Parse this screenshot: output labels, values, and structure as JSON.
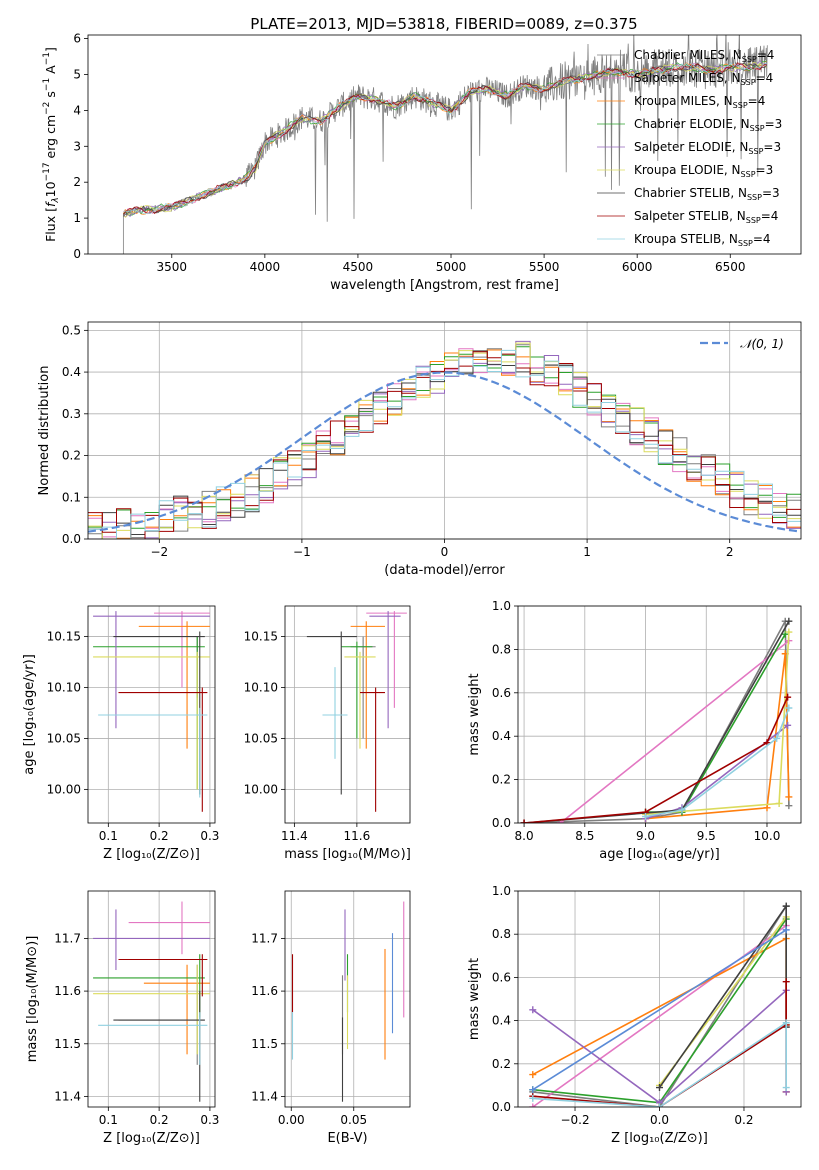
{
  "figure_title": "PLATE=2013, MJD=53818, FIBERID=0089, z=0.375",
  "colors": {
    "Chabrier MILES": "#7f7f7f",
    "Salpeter MILES": "#e377c2",
    "Kroupa MILES": "#ff7f0e",
    "Chabrier ELODIE": "#2ca02c",
    "Salpeter ELODIE": "#9467bd",
    "Kroupa ELODIE": "#dbdb5d",
    "Chabrier STELIB": "#404040",
    "Salpeter STELIB": "#a00000",
    "Kroupa STELIB": "#90d0e0",
    "normal": "#5b8bd6"
  },
  "chart_data": [
    {
      "id": "spectrum",
      "type": "line",
      "title": "PLATE=2013, MJD=53818, FIBERID=0089, z=0.375",
      "xlabel": "wavelength [Angstrom, rest frame]",
      "ylabel": "Flux [f_λ 10^-17 erg cm^-2 s^-1 A^-1]",
      "xlim": [
        3050,
        6880
      ],
      "ylim": [
        0,
        6.1
      ],
      "xticks": [
        3500,
        4000,
        4500,
        5000,
        5500,
        6000,
        6500
      ],
      "yticks": [
        0,
        1,
        2,
        3,
        4,
        5,
        6
      ],
      "grid": false,
      "legend_position": "top-right",
      "legend": [
        {
          "name": "Chabrier MILES",
          "nssp": "4"
        },
        {
          "name": "Salpeter MILES",
          "nssp": "4"
        },
        {
          "name": "Kroupa MILES",
          "nssp": "4"
        },
        {
          "name": "Chabrier ELODIE",
          "nssp": "3"
        },
        {
          "name": "Salpeter ELODIE",
          "nssp": "3"
        },
        {
          "name": "Kroupa ELODIE",
          "nssp": "3"
        },
        {
          "name": "Chabrier STELIB",
          "nssp": "3"
        },
        {
          "name": "Salpeter STELIB",
          "nssp": "4"
        },
        {
          "name": "Kroupa STELIB",
          "nssp": "4"
        }
      ],
      "continuum": {
        "x": [
          3240,
          3300,
          3400,
          3500,
          3600,
          3700,
          3800,
          3900,
          3950,
          4000,
          4100,
          4200,
          4300,
          4400,
          4500,
          4600,
          4700,
          4800,
          4900,
          5000,
          5100,
          5200,
          5300,
          5400,
          5500,
          5600,
          5700,
          5800,
          5900,
          6000,
          6100,
          6200,
          6300,
          6400,
          6500,
          6600,
          6700
        ],
        "y": [
          1.1,
          1.2,
          1.25,
          1.3,
          1.5,
          1.7,
          1.9,
          2.1,
          2.4,
          3.1,
          3.4,
          3.8,
          3.7,
          4.1,
          4.4,
          4.3,
          4.1,
          4.4,
          4.2,
          4.0,
          4.5,
          4.6,
          4.4,
          4.7,
          4.6,
          4.8,
          4.9,
          5.0,
          5.1,
          5.0,
          5.1,
          5.2,
          5.2,
          5.1,
          5.2,
          5.2,
          5.3
        ]
      }
    },
    {
      "id": "residuals",
      "type": "histogram",
      "xlabel": "(data-model)/error",
      "ylabel": "Normed distribution",
      "xlim": [
        -2.5,
        2.5
      ],
      "ylim": [
        0,
        0.52
      ],
      "xticks": [
        -2,
        -1,
        0,
        1,
        2
      ],
      "yticks": [
        0.0,
        0.1,
        0.2,
        0.3,
        0.4,
        0.5
      ],
      "grid": true,
      "legend_position": "top-right",
      "legend": [
        {
          "name": "𝒩(0, 1)"
        }
      ],
      "bin_width": 0.1,
      "base_heights": [
        0.02,
        0.02,
        0.03,
        0.03,
        0.04,
        0.05,
        0.06,
        0.06,
        0.07,
        0.08,
        0.09,
        0.11,
        0.13,
        0.15,
        0.17,
        0.19,
        0.22,
        0.24,
        0.27,
        0.29,
        0.31,
        0.33,
        0.35,
        0.37,
        0.39,
        0.41,
        0.43,
        0.44,
        0.44,
        0.43,
        0.43,
        0.41,
        0.4,
        0.38,
        0.36,
        0.34,
        0.31,
        0.29,
        0.27,
        0.25,
        0.22,
        0.2,
        0.18,
        0.16,
        0.14,
        0.12,
        0.1,
        0.09,
        0.08,
        0.07
      ]
    },
    {
      "id": "age_vs_Z",
      "type": "scatter",
      "xlabel": "Z [log10(Z/Z⊙)]",
      "ylabel": "age [log10(age/yr)]",
      "xlim": [
        0.06,
        0.31
      ],
      "ylim": [
        9.967,
        10.18
      ],
      "xticks": [
        0.1,
        0.2,
        0.3
      ],
      "yticks": [
        10.0,
        10.05,
        10.1,
        10.15
      ],
      "grid": true,
      "points": [
        {
          "series": "Chabrier MILES",
          "x": 0.275,
          "xerr": [
            0.0,
            0.005
          ],
          "y": 10.14,
          "yerr": [
            10.09,
            10.15
          ]
        },
        {
          "series": "Salpeter MILES",
          "x": 0.245,
          "xerr": [
            0.19,
            0.3
          ],
          "y": 10.173,
          "yerr": [
            10.1,
            10.175
          ]
        },
        {
          "series": "Kroupa MILES",
          "x": 0.255,
          "xerr": [
            0.16,
            0.3
          ],
          "y": 10.16,
          "yerr": [
            10.04,
            10.165
          ]
        },
        {
          "series": "Chabrier ELODIE",
          "x": 0.275,
          "xerr": [
            0.07,
            0.29
          ],
          "y": 10.14,
          "yerr": [
            10.0,
            10.15
          ]
        },
        {
          "series": "Salpeter ELODIE",
          "x": 0.115,
          "xerr": [
            0.07,
            0.3
          ],
          "y": 10.17,
          "yerr": [
            10.06,
            10.175
          ]
        },
        {
          "series": "Kroupa ELODIE",
          "x": 0.275,
          "xerr": [
            0.07,
            0.3
          ],
          "y": 10.13,
          "yerr": [
            10.0,
            10.135
          ]
        },
        {
          "series": "Chabrier STELIB",
          "x": 0.28,
          "xerr": [
            0.11,
            0.29
          ],
          "y": 10.15,
          "yerr": [
            9.995,
            10.155
          ]
        },
        {
          "series": "Salpeter STELIB",
          "x": 0.285,
          "xerr": [
            0.12,
            0.295
          ],
          "y": 10.095,
          "yerr": [
            9.978,
            10.1
          ]
        },
        {
          "series": "Kroupa STELIB",
          "x": 0.28,
          "xerr": [
            0.08,
            0.295
          ],
          "y": 10.073,
          "yerr": [
            9.992,
            10.08
          ]
        }
      ]
    },
    {
      "id": "age_vs_mass",
      "type": "scatter",
      "xlabel": "mass [log10(M/M⊙)]",
      "ylabel": "",
      "xlim": [
        11.37,
        11.77
      ],
      "ylim": [
        9.967,
        10.18
      ],
      "xticks": [
        11.4,
        11.6
      ],
      "yticks": [
        10.0,
        10.05,
        10.1,
        10.15
      ],
      "grid": true,
      "points": [
        {
          "series": "Chabrier MILES",
          "x": 11.62,
          "xerr": [
            11.58,
            11.66
          ],
          "y": 10.14,
          "yerr": [
            10.05,
            10.15
          ]
        },
        {
          "series": "Salpeter MILES",
          "x": 11.72,
          "xerr": [
            11.63,
            11.76
          ],
          "y": 10.173,
          "yerr": [
            10.08,
            10.175
          ]
        },
        {
          "series": "Kroupa MILES",
          "x": 11.63,
          "xerr": [
            11.58,
            11.69
          ],
          "y": 10.16,
          "yerr": [
            10.04,
            10.165
          ]
        },
        {
          "series": "Chabrier ELODIE",
          "x": 11.6,
          "xerr": [
            11.55,
            11.65
          ],
          "y": 10.14,
          "yerr": [
            10.05,
            10.145
          ]
        },
        {
          "series": "Salpeter ELODIE",
          "x": 11.7,
          "xerr": [
            11.64,
            11.74
          ],
          "y": 10.17,
          "yerr": [
            10.06,
            10.175
          ]
        },
        {
          "series": "Kroupa ELODIE",
          "x": 11.61,
          "xerr": [
            11.56,
            11.66
          ],
          "y": 10.13,
          "yerr": [
            10.04,
            10.135
          ]
        },
        {
          "series": "Chabrier STELIB",
          "x": 11.55,
          "xerr": [
            11.44,
            11.6
          ],
          "y": 10.15,
          "yerr": [
            9.995,
            10.155
          ]
        },
        {
          "series": "Salpeter STELIB",
          "x": 11.66,
          "xerr": [
            11.61,
            11.69
          ],
          "y": 10.095,
          "yerr": [
            9.978,
            10.1
          ]
        },
        {
          "series": "Kroupa STELIB",
          "x": 11.53,
          "xerr": [
            11.49,
            11.57
          ],
          "y": 10.073,
          "yerr": [
            10.03,
            10.12
          ]
        }
      ]
    },
    {
      "id": "weight_vs_age",
      "type": "line",
      "xlabel": "age [log10(age/yr)]",
      "ylabel": "mass weight",
      "xlim": [
        7.95,
        10.28
      ],
      "ylim": [
        0,
        1.0
      ],
      "xticks": [
        8.0,
        8.5,
        9.0,
        9.5,
        10.0
      ],
      "yticks": [
        0.0,
        0.2,
        0.4,
        0.6,
        0.8,
        1.0
      ],
      "grid": true,
      "series": [
        {
          "name": "Chabrier MILES",
          "x": [
            8.0,
            9.0,
            9.3,
            10.15,
            10.18
          ],
          "y": [
            0.0,
            0.02,
            0.05,
            0.93,
            0.08
          ]
        },
        {
          "name": "Salpeter MILES",
          "x": [
            8.3,
            10.18
          ],
          "y": [
            0.0,
            0.84
          ]
        },
        {
          "name": "Kroupa MILES",
          "x": [
            9.0,
            10.0,
            10.15,
            10.18
          ],
          "y": [
            0.02,
            0.07,
            0.78,
            0.12
          ]
        },
        {
          "name": "Chabrier ELODIE",
          "x": [
            9.0,
            9.3,
            10.15
          ],
          "y": [
            0.05,
            0.05,
            0.87
          ]
        },
        {
          "name": "Salpeter ELODIE",
          "x": [
            9.0,
            9.3,
            10.17
          ],
          "y": [
            0.02,
            0.07,
            0.45
          ]
        },
        {
          "name": "Kroupa ELODIE",
          "x": [
            9.0,
            10.1,
            10.18
          ],
          "y": [
            0.04,
            0.09,
            0.88
          ]
        },
        {
          "name": "Chabrier STELIB",
          "x": [
            8.0,
            9.3,
            10.18
          ],
          "y": [
            0.0,
            0.06,
            0.93
          ]
        },
        {
          "name": "Salpeter STELIB",
          "x": [
            8.0,
            9.0,
            10.0,
            10.17
          ],
          "y": [
            0.0,
            0.05,
            0.37,
            0.58
          ]
        },
        {
          "name": "Kroupa STELIB",
          "x": [
            9.0,
            9.3,
            10.08,
            10.18
          ],
          "y": [
            0.03,
            0.06,
            0.39,
            0.53
          ]
        }
      ]
    },
    {
      "id": "mass_vs_Z",
      "type": "scatter",
      "xlabel": "Z [log10(Z/Z⊙)]",
      "ylabel": "mass [log10(M/M⊙)]",
      "xlim": [
        0.06,
        0.31
      ],
      "ylim": [
        11.38,
        11.79
      ],
      "xticks": [
        0.1,
        0.2,
        0.3
      ],
      "yticks": [
        11.4,
        11.5,
        11.6,
        11.7
      ],
      "grid": true,
      "points": [
        {
          "series": "Chabrier MILES",
          "x": 0.275,
          "xerr": [
            0.12,
            0.29
          ],
          "y": 11.545,
          "yerr": [
            11.46,
            11.65
          ]
        },
        {
          "series": "Salpeter MILES",
          "x": 0.245,
          "xerr": [
            0.14,
            0.3
          ],
          "y": 11.73,
          "yerr": [
            11.67,
            11.77
          ]
        },
        {
          "series": "Kroupa MILES",
          "x": 0.255,
          "xerr": [
            0.17,
            0.3
          ],
          "y": 11.615,
          "yerr": [
            11.48,
            11.65
          ]
        },
        {
          "series": "Chabrier ELODIE",
          "x": 0.28,
          "xerr": [
            0.07,
            0.29
          ],
          "y": 11.625,
          "yerr": [
            11.55,
            11.67
          ]
        },
        {
          "series": "Salpeter ELODIE",
          "x": 0.115,
          "xerr": [
            0.07,
            0.3
          ],
          "y": 11.7,
          "yerr": [
            11.64,
            11.755
          ]
        },
        {
          "series": "Kroupa ELODIE",
          "x": 0.275,
          "xerr": [
            0.07,
            0.3
          ],
          "y": 11.595,
          "yerr": [
            11.48,
            11.65
          ]
        },
        {
          "series": "Chabrier STELIB",
          "x": 0.28,
          "xerr": [
            0.11,
            0.29
          ],
          "y": 11.545,
          "yerr": [
            11.39,
            11.6
          ]
        },
        {
          "series": "Salpeter STELIB",
          "x": 0.285,
          "xerr": [
            0.12,
            0.295
          ],
          "y": 11.66,
          "yerr": [
            11.59,
            11.67
          ]
        },
        {
          "series": "Kroupa STELIB",
          "x": 0.28,
          "xerr": [
            0.08,
            0.295
          ],
          "y": 11.535,
          "yerr": [
            11.46,
            11.56
          ]
        }
      ]
    },
    {
      "id": "mass_vs_ebv",
      "type": "scatter",
      "xlabel": "E(B-V)",
      "ylabel": "",
      "xlim": [
        -0.005,
        0.095
      ],
      "ylim": [
        11.38,
        11.79
      ],
      "xticks": [
        0.0,
        0.05
      ],
      "yticks": [
        11.4,
        11.5,
        11.6,
        11.7
      ],
      "grid": true,
      "points": [
        {
          "series": "Chabrier MILES",
          "x": 0.041,
          "yerr": [
            11.48,
            11.63
          ]
        },
        {
          "series": "Salpeter MILES",
          "x": 0.09,
          "yerr": [
            11.55,
            11.77
          ]
        },
        {
          "series": "Kroupa MILES",
          "x": 0.075,
          "yerr": [
            11.47,
            11.68
          ]
        },
        {
          "series": "Chabrier ELODIE",
          "x": 0.045,
          "yerr": [
            11.56,
            11.67
          ]
        },
        {
          "series": "Salpeter ELODIE",
          "x": 0.043,
          "yerr": [
            11.62,
            11.755
          ]
        },
        {
          "series": "Kroupa ELODIE",
          "x": 0.045,
          "yerr": [
            11.49,
            11.63
          ]
        },
        {
          "series": "Chabrier STELIB",
          "x": 0.041,
          "yerr": [
            11.39,
            11.55
          ]
        },
        {
          "series": "Salpeter STELIB",
          "x": 0.001,
          "yerr": [
            11.56,
            11.67
          ]
        },
        {
          "series": "Kroupa STELIB",
          "x": 0.001,
          "yerr": [
            11.47,
            11.56
          ]
        },
        {
          "series": "normal",
          "x": 0.081,
          "yerr": [
            11.52,
            11.71
          ]
        }
      ]
    },
    {
      "id": "weight_vs_Z",
      "type": "line",
      "xlabel": "Z [log10(Z/Z⊙)]",
      "ylabel": "mass weight",
      "xlim": [
        -0.335,
        0.335
      ],
      "ylim": [
        0,
        1.0
      ],
      "xticks": [
        -0.2,
        0.0,
        0.2
      ],
      "yticks": [
        0.0,
        0.2,
        0.4,
        0.6,
        0.8,
        1.0
      ],
      "grid": true,
      "series": [
        {
          "name": "Chabrier MILES",
          "x": [
            -0.3,
            0.0,
            0.3,
            0.3
          ],
          "y": [
            0.07,
            0.0,
            0.93,
            0.37
          ]
        },
        {
          "name": "Salpeter MILES",
          "x": [
            -0.3,
            0.3,
            0.3
          ],
          "y": [
            0.0,
            0.84,
            0.07
          ]
        },
        {
          "name": "Kroupa MILES",
          "x": [
            -0.3,
            0.3,
            0.3
          ],
          "y": [
            0.15,
            0.78,
            0.07
          ]
        },
        {
          "name": "Chabrier ELODIE",
          "x": [
            -0.3,
            0.0,
            0.3
          ],
          "y": [
            0.08,
            0.02,
            0.87
          ]
        },
        {
          "name": "Salpeter ELODIE",
          "x": [
            -0.3,
            0.0,
            0.3,
            0.3
          ],
          "y": [
            0.45,
            0.02,
            0.54,
            0.07
          ]
        },
        {
          "name": "Kroupa ELODIE",
          "x": [
            0.0,
            0.3,
            0.3
          ],
          "y": [
            0.1,
            0.88,
            0.38
          ]
        },
        {
          "name": "Chabrier STELIB",
          "x": [
            0.0,
            0.3,
            0.3
          ],
          "y": [
            0.09,
            0.93,
            0.37
          ]
        },
        {
          "name": "Salpeter STELIB",
          "x": [
            -0.3,
            0.0,
            0.3,
            0.3
          ],
          "y": [
            0.05,
            0.0,
            0.38,
            0.58
          ]
        },
        {
          "name": "Kroupa STELIB",
          "x": [
            -0.3,
            0.0,
            0.3,
            0.3
          ],
          "y": [
            0.04,
            0.0,
            0.39,
            0.09
          ]
        },
        {
          "name": "normal",
          "x": [
            -0.3,
            0.3
          ],
          "y": [
            0.08,
            0.82
          ]
        }
      ]
    }
  ]
}
